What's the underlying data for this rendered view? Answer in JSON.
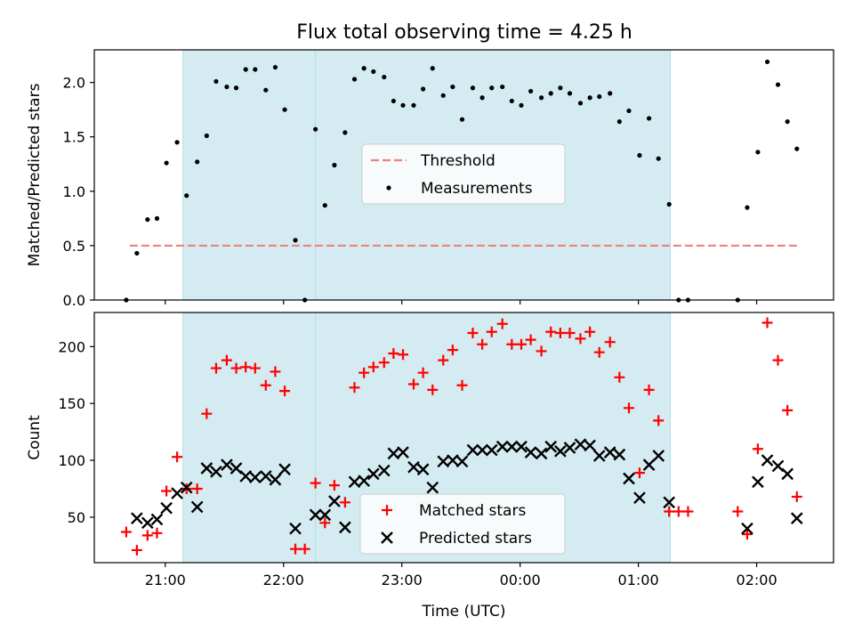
{
  "figure": {
    "title": "Flux total observing time = 4.25 h"
  },
  "chart_data": [
    {
      "type": "scatter",
      "panel": "top",
      "title": "Flux total observing time = 4.25 h",
      "ylabel": "Matched/Predicted stars",
      "xlabel": "",
      "x_unit": "hours after 00:00 UTC",
      "xlim": [
        -3.6,
        2.65
      ],
      "ylim": [
        0,
        2.3
      ],
      "yticks": [
        0.0,
        0.5,
        1.0,
        1.5,
        2.0
      ],
      "ytick_labels": [
        "0.0",
        "0.5",
        "1.0",
        "1.5",
        "2.0"
      ],
      "shaded_intervals": [
        [
          -2.85,
          -1.6
        ],
        [
          -1.73,
          1.27
        ]
      ],
      "threshold": {
        "name": "Threshold",
        "value": 0.5,
        "x_range": [
          -3.3,
          2.35
        ],
        "color": "#f08080",
        "style": "dashed"
      },
      "legend": {
        "placement": "center",
        "entries": [
          "Threshold",
          "Measurements"
        ]
      },
      "series": [
        {
          "name": "Measurements",
          "color": "#000000",
          "marker": "dot",
          "points": [
            [
              -3.33,
              0.0
            ],
            [
              -3.24,
              0.43
            ],
            [
              -3.15,
              0.74
            ],
            [
              -3.07,
              0.75
            ],
            [
              -2.99,
              1.26
            ],
            [
              -2.9,
              1.45
            ],
            [
              -2.82,
              0.96
            ],
            [
              -2.73,
              1.27
            ],
            [
              -2.65,
              1.51
            ],
            [
              -2.57,
              2.01
            ],
            [
              -2.48,
              1.96
            ],
            [
              -2.4,
              1.95
            ],
            [
              -2.32,
              2.12
            ],
            [
              -2.24,
              2.12
            ],
            [
              -2.15,
              1.93
            ],
            [
              -2.07,
              2.14
            ],
            [
              -1.99,
              1.75
            ],
            [
              -1.9,
              0.55
            ],
            [
              -1.82,
              0.0
            ],
            [
              -1.73,
              1.57
            ],
            [
              -1.65,
              0.87
            ],
            [
              -1.57,
              1.24
            ],
            [
              -1.48,
              1.54
            ],
            [
              -1.4,
              2.03
            ],
            [
              -1.32,
              2.13
            ],
            [
              -1.24,
              2.1
            ],
            [
              -1.15,
              2.05
            ],
            [
              -1.07,
              1.83
            ],
            [
              -0.99,
              1.79
            ],
            [
              -0.9,
              1.79
            ],
            [
              -0.82,
              1.94
            ],
            [
              -0.74,
              2.13
            ],
            [
              -0.65,
              1.88
            ],
            [
              -0.57,
              1.96
            ],
            [
              -0.49,
              1.66
            ],
            [
              -0.4,
              1.95
            ],
            [
              -0.32,
              1.86
            ],
            [
              -0.24,
              1.95
            ],
            [
              -0.15,
              1.96
            ],
            [
              -0.07,
              1.83
            ],
            [
              0.01,
              1.79
            ],
            [
              0.09,
              1.92
            ],
            [
              0.18,
              1.86
            ],
            [
              0.26,
              1.9
            ],
            [
              0.34,
              1.95
            ],
            [
              0.42,
              1.9
            ],
            [
              0.51,
              1.81
            ],
            [
              0.59,
              1.86
            ],
            [
              0.67,
              1.87
            ],
            [
              0.76,
              1.9
            ],
            [
              0.84,
              1.64
            ],
            [
              0.92,
              1.74
            ],
            [
              1.01,
              1.33
            ],
            [
              1.09,
              1.67
            ],
            [
              1.17,
              1.3
            ],
            [
              1.26,
              0.88
            ],
            [
              1.34,
              0.0
            ],
            [
              1.42,
              0.0
            ],
            [
              1.84,
              0.0
            ],
            [
              1.92,
              0.85
            ],
            [
              2.01,
              1.36
            ],
            [
              2.09,
              2.19
            ],
            [
              2.18,
              1.98
            ],
            [
              2.26,
              1.64
            ],
            [
              2.34,
              1.39
            ]
          ]
        }
      ]
    },
    {
      "type": "scatter",
      "panel": "bottom",
      "title": "",
      "ylabel": "Count",
      "xlabel": "Time (UTC)",
      "x_unit": "hours after 00:00 UTC",
      "xlim": [
        -3.6,
        2.65
      ],
      "ylim": [
        10,
        230
      ],
      "yticks": [
        50,
        100,
        150,
        200
      ],
      "ytick_labels": [
        "50",
        "100",
        "150",
        "200"
      ],
      "xticks": [
        -3,
        -2,
        -1,
        0,
        1,
        2
      ],
      "xtick_labels": [
        "21:00",
        "22:00",
        "23:00",
        "00:00",
        "01:00",
        "02:00"
      ],
      "shaded_intervals": [
        [
          -2.85,
          -1.6
        ],
        [
          -1.73,
          1.27
        ]
      ],
      "legend": {
        "placement": "bottom-center",
        "entries": [
          "Matched stars",
          "Predicted stars"
        ]
      },
      "series": [
        {
          "name": "Matched stars",
          "color": "#ff0000",
          "marker": "plus",
          "points": [
            [
              -3.33,
              37
            ],
            [
              -3.24,
              21
            ],
            [
              -3.15,
              34
            ],
            [
              -3.07,
              36
            ],
            [
              -2.99,
              73
            ],
            [
              -2.9,
              103
            ],
            [
              -2.82,
              75
            ],
            [
              -2.73,
              75
            ],
            [
              -2.65,
              141
            ],
            [
              -2.57,
              181
            ],
            [
              -2.48,
              188
            ],
            [
              -2.4,
              181
            ],
            [
              -2.32,
              182
            ],
            [
              -2.24,
              181
            ],
            [
              -2.15,
              166
            ],
            [
              -2.07,
              178
            ],
            [
              -1.99,
              161
            ],
            [
              -1.9,
              22
            ],
            [
              -1.82,
              22
            ],
            [
              -1.73,
              80
            ],
            [
              -1.65,
              45
            ],
            [
              -1.57,
              78
            ],
            [
              -1.48,
              63
            ],
            [
              -1.4,
              164
            ],
            [
              -1.32,
              177
            ],
            [
              -1.24,
              182
            ],
            [
              -1.15,
              186
            ],
            [
              -1.07,
              194
            ],
            [
              -0.99,
              193
            ],
            [
              -0.9,
              167
            ],
            [
              -0.82,
              177
            ],
            [
              -0.74,
              162
            ],
            [
              -0.65,
              188
            ],
            [
              -0.57,
              197
            ],
            [
              -0.49,
              166
            ],
            [
              -0.4,
              212
            ],
            [
              -0.32,
              202
            ],
            [
              -0.24,
              213
            ],
            [
              -0.15,
              220
            ],
            [
              -0.07,
              202
            ],
            [
              0.01,
              202
            ],
            [
              0.09,
              206
            ],
            [
              0.18,
              196
            ],
            [
              0.26,
              213
            ],
            [
              0.34,
              212
            ],
            [
              0.42,
              212
            ],
            [
              0.51,
              207
            ],
            [
              0.59,
              213
            ],
            [
              0.67,
              195
            ],
            [
              0.76,
              204
            ],
            [
              0.84,
              173
            ],
            [
              0.92,
              146
            ],
            [
              1.01,
              89
            ],
            [
              1.09,
              162
            ],
            [
              1.17,
              135
            ],
            [
              1.26,
              55
            ],
            [
              1.34,
              55
            ],
            [
              1.42,
              55
            ],
            [
              1.84,
              55
            ],
            [
              1.92,
              35
            ],
            [
              2.01,
              110
            ],
            [
              2.09,
              221
            ],
            [
              2.18,
              188
            ],
            [
              2.26,
              144
            ],
            [
              2.34,
              68
            ]
          ]
        },
        {
          "name": "Predicted stars",
          "color": "#000000",
          "marker": "x",
          "points": [
            [
              -3.24,
              49
            ],
            [
              -3.15,
              45
            ],
            [
              -3.07,
              48
            ],
            [
              -2.99,
              58
            ],
            [
              -2.9,
              71
            ],
            [
              -2.82,
              76
            ],
            [
              -2.73,
              59
            ],
            [
              -2.65,
              93
            ],
            [
              -2.57,
              90
            ],
            [
              -2.48,
              96
            ],
            [
              -2.4,
              93
            ],
            [
              -2.32,
              86
            ],
            [
              -2.24,
              85
            ],
            [
              -2.15,
              86
            ],
            [
              -2.07,
              83
            ],
            [
              -1.99,
              92
            ],
            [
              -1.9,
              40
            ],
            [
              -1.73,
              52
            ],
            [
              -1.65,
              52
            ],
            [
              -1.57,
              64
            ],
            [
              -1.48,
              41
            ],
            [
              -1.4,
              81
            ],
            [
              -1.32,
              82
            ],
            [
              -1.24,
              88
            ],
            [
              -1.15,
              91
            ],
            [
              -1.07,
              106
            ],
            [
              -0.99,
              107
            ],
            [
              -0.9,
              94
            ],
            [
              -0.82,
              92
            ],
            [
              -0.74,
              76
            ],
            [
              -0.65,
              99
            ],
            [
              -0.57,
              100
            ],
            [
              -0.49,
              99
            ],
            [
              -0.4,
              109
            ],
            [
              -0.32,
              109
            ],
            [
              -0.24,
              109
            ],
            [
              -0.15,
              112
            ],
            [
              -0.07,
              112
            ],
            [
              0.01,
              112
            ],
            [
              0.09,
              107
            ],
            [
              0.18,
              106
            ],
            [
              0.26,
              112
            ],
            [
              0.34,
              108
            ],
            [
              0.42,
              111
            ],
            [
              0.51,
              114
            ],
            [
              0.59,
              113
            ],
            [
              0.67,
              104
            ],
            [
              0.76,
              107
            ],
            [
              0.84,
              105
            ],
            [
              0.92,
              84
            ],
            [
              1.01,
              67
            ],
            [
              1.09,
              96
            ],
            [
              1.17,
              104
            ],
            [
              1.26,
              63
            ],
            [
              1.92,
              40
            ],
            [
              2.01,
              81
            ],
            [
              2.09,
              100
            ],
            [
              2.18,
              95
            ],
            [
              2.26,
              88
            ],
            [
              2.34,
              49
            ]
          ]
        }
      ]
    }
  ],
  "colors": {
    "shade": "#d4ebf1",
    "shade_edge": "#b2dde6",
    "threshold": "#f08080"
  }
}
